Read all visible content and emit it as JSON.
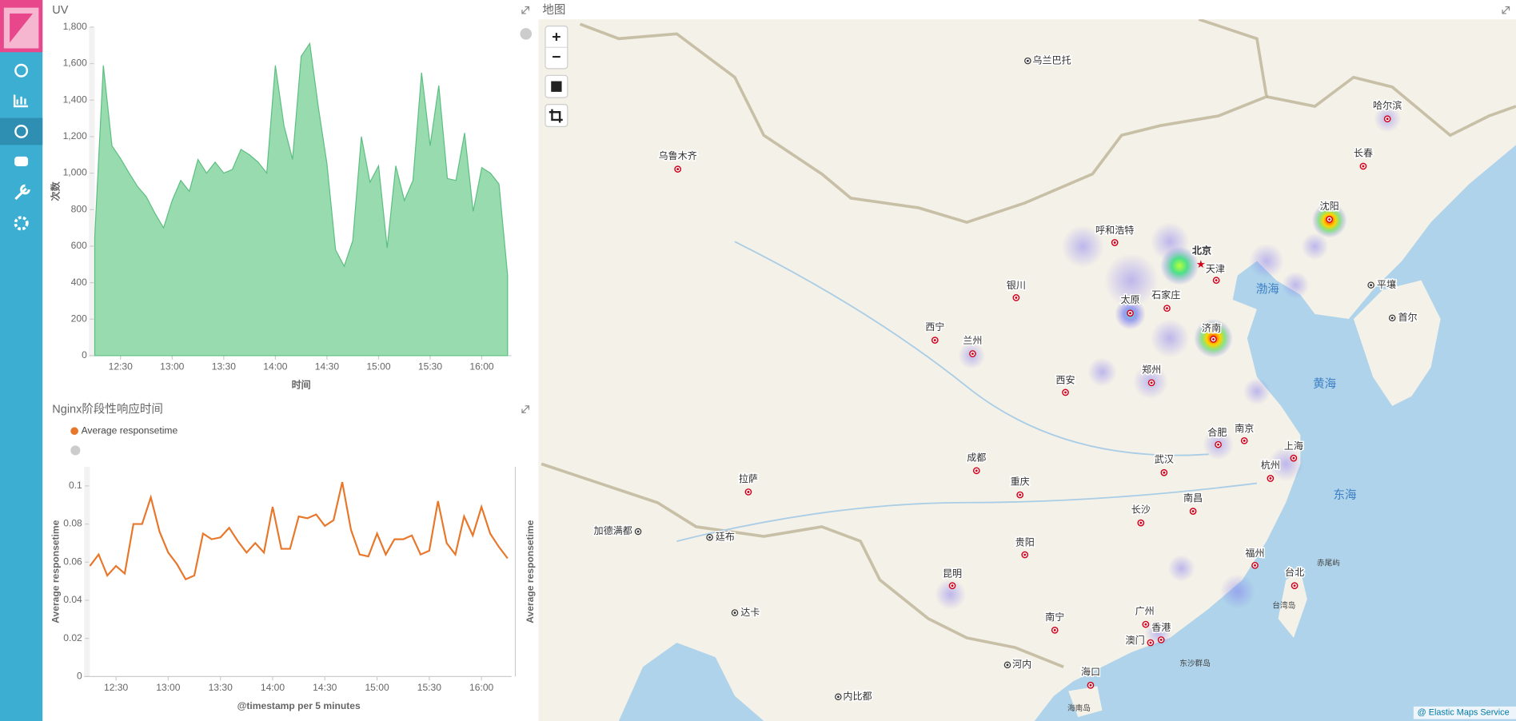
{
  "chart_data": [
    {
      "type": "area",
      "title": "UV",
      "xlabel": "时间",
      "ylabel": "次数",
      "color": "#98dbae",
      "edge_color": "#5cbf81",
      "x": [
        "12:15",
        "12:20",
        "12:25",
        "12:30",
        "12:35",
        "12:40",
        "12:45",
        "12:50",
        "12:55",
        "13:00",
        "13:05",
        "13:10",
        "13:15",
        "13:20",
        "13:25",
        "13:30",
        "13:35",
        "13:40",
        "13:45",
        "13:50",
        "13:55",
        "14:00",
        "14:05",
        "14:10",
        "14:15",
        "14:20",
        "14:25",
        "14:30",
        "14:35",
        "14:40",
        "14:45",
        "14:50",
        "14:55",
        "15:00",
        "15:05",
        "15:10",
        "15:15",
        "15:20",
        "15:25",
        "15:30",
        "15:35",
        "15:40",
        "15:45",
        "15:50",
        "15:55",
        "16:00",
        "16:05",
        "16:10",
        "16:15"
      ],
      "values": [
        650,
        1590,
        1150,
        1080,
        1000,
        925,
        870,
        780,
        700,
        850,
        960,
        900,
        1075,
        1000,
        1060,
        1000,
        1020,
        1130,
        1100,
        1060,
        1000,
        1590,
        1260,
        1075,
        1640,
        1710,
        1360,
        1050,
        580,
        490,
        630,
        1200,
        950,
        1040,
        590,
        1040,
        850,
        960,
        1550,
        1150,
        1480,
        970,
        960,
        1220,
        790,
        1030,
        1000,
        940,
        440
      ],
      "xticks": [
        "12:30",
        "13:00",
        "13:30",
        "14:00",
        "14:30",
        "15:00",
        "15:30",
        "16:00"
      ],
      "ylim": [
        0,
        1800
      ],
      "yticks": [
        0,
        200,
        400,
        600,
        800,
        {
          "value": 1000,
          "label": "1,000"
        },
        {
          "value": 1200,
          "label": "1,200"
        },
        {
          "value": 1400,
          "label": "1,400"
        },
        {
          "value": 1600,
          "label": "1,600"
        },
        {
          "value": 1800,
          "label": "1,800"
        }
      ]
    },
    {
      "type": "line",
      "title": "Nginx阶段性响应时间",
      "xlabel": "@timestamp per 5 minutes",
      "ylabel": "Average responsetime",
      "legend": true,
      "x": [
        "12:15",
        "12:20",
        "12:25",
        "12:30",
        "12:35",
        "12:40",
        "12:45",
        "12:50",
        "12:55",
        "13:00",
        "13:05",
        "13:10",
        "13:15",
        "13:20",
        "13:25",
        "13:30",
        "13:35",
        "13:40",
        "13:45",
        "13:50",
        "13:55",
        "14:00",
        "14:05",
        "14:10",
        "14:15",
        "14:20",
        "14:25",
        "14:30",
        "14:35",
        "14:40",
        "14:45",
        "14:50",
        "14:55",
        "15:00",
        "15:05",
        "15:10",
        "15:15",
        "15:20",
        "15:25",
        "15:30",
        "15:35",
        "15:40",
        "15:45",
        "15:50",
        "15:55",
        "16:00",
        "16:05",
        "16:10",
        "16:15"
      ],
      "series": [
        {
          "name": "Average responsetime",
          "color": "#e7772b",
          "values": [
            0.058,
            0.064,
            0.053,
            0.058,
            0.054,
            0.08,
            0.08,
            0.094,
            0.076,
            0.065,
            0.059,
            0.051,
            0.053,
            0.075,
            0.072,
            0.073,
            0.078,
            0.071,
            0.065,
            0.07,
            0.065,
            0.089,
            0.067,
            0.067,
            0.084,
            0.083,
            0.085,
            0.079,
            0.082,
            0.102,
            0.077,
            0.064,
            0.063,
            0.075,
            0.064,
            0.072,
            0.072,
            0.074,
            0.064,
            0.066,
            0.092,
            0.07,
            0.064,
            0.084,
            0.074,
            0.089,
            0.075,
            0.068,
            0.062
          ]
        }
      ],
      "xticks": [
        "12:30",
        "13:00",
        "13:30",
        "14:00",
        "14:30",
        "15:00",
        "15:30",
        "16:00"
      ],
      "ylim": [
        0,
        0.11
      ],
      "yticks": [
        0,
        0.02,
        0.04,
        0.06,
        0.08,
        0.1
      ]
    }
  ],
  "map": {
    "title": "地图",
    "zoom_in": "+",
    "zoom_out": "−",
    "cities": [
      "乌鲁木齐",
      "乌兰巴托",
      "呼和浩特",
      "北京",
      "天津",
      "银川",
      "太原",
      "石家庄",
      "西宁",
      "兰州",
      "济南",
      "郑州",
      "西安",
      "合肥",
      "南京",
      "上海",
      "武汉",
      "杭州",
      "成都",
      "重庆",
      "拉萨",
      "长沙",
      "南昌",
      "贵阳",
      "昆明",
      "福州",
      "台北",
      "南宁",
      "广州",
      "香港",
      "澳门",
      "海口",
      "哈尔滨",
      "长春",
      "沈阳",
      "平壤",
      "首尔",
      "廷布",
      "加德满都",
      "达卡",
      "河内",
      "内比都"
    ],
    "seas": [
      "渤海",
      "黄海",
      "东海"
    ],
    "islands": [
      "海南岛",
      "台湾岛",
      "赤尾屿",
      "东沙群岛"
    ],
    "attribution": "@ Elastic Maps Service"
  }
}
